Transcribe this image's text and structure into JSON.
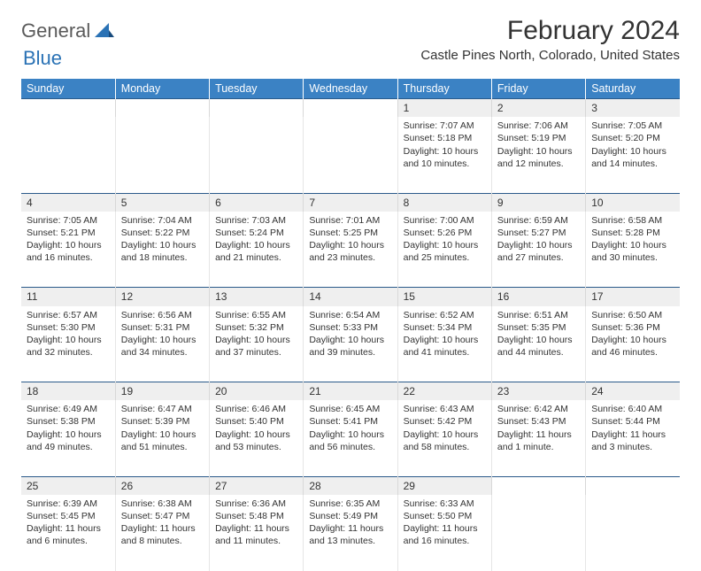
{
  "brand": {
    "part1": "General",
    "part2": "Blue"
  },
  "title": "February 2024",
  "location": "Castle Pines North, Colorado, United States",
  "colors": {
    "header_bg": "#3b82c4",
    "header_text": "#ffffff",
    "daynum_bg": "#efefef",
    "daynum_border_top": "#2a5a8a",
    "logo_accent": "#2a72b5",
    "body_text": "#333333"
  },
  "typography": {
    "month_title_fontsize": 30,
    "location_fontsize": 15,
    "weekday_fontsize": 12.5,
    "cell_fontsize": 10.5
  },
  "weekdays": [
    "Sunday",
    "Monday",
    "Tuesday",
    "Wednesday",
    "Thursday",
    "Friday",
    "Saturday"
  ],
  "weeks": [
    {
      "nums": [
        "",
        "",
        "",
        "",
        "1",
        "2",
        "3"
      ],
      "cells": [
        {
          "sunrise": "",
          "sunset": "",
          "daylight": ""
        },
        {
          "sunrise": "",
          "sunset": "",
          "daylight": ""
        },
        {
          "sunrise": "",
          "sunset": "",
          "daylight": ""
        },
        {
          "sunrise": "",
          "sunset": "",
          "daylight": ""
        },
        {
          "sunrise": "Sunrise: 7:07 AM",
          "sunset": "Sunset: 5:18 PM",
          "daylight": "Daylight: 10 hours and 10 minutes."
        },
        {
          "sunrise": "Sunrise: 7:06 AM",
          "sunset": "Sunset: 5:19 PM",
          "daylight": "Daylight: 10 hours and 12 minutes."
        },
        {
          "sunrise": "Sunrise: 7:05 AM",
          "sunset": "Sunset: 5:20 PM",
          "daylight": "Daylight: 10 hours and 14 minutes."
        }
      ]
    },
    {
      "nums": [
        "4",
        "5",
        "6",
        "7",
        "8",
        "9",
        "10"
      ],
      "cells": [
        {
          "sunrise": "Sunrise: 7:05 AM",
          "sunset": "Sunset: 5:21 PM",
          "daylight": "Daylight: 10 hours and 16 minutes."
        },
        {
          "sunrise": "Sunrise: 7:04 AM",
          "sunset": "Sunset: 5:22 PM",
          "daylight": "Daylight: 10 hours and 18 minutes."
        },
        {
          "sunrise": "Sunrise: 7:03 AM",
          "sunset": "Sunset: 5:24 PM",
          "daylight": "Daylight: 10 hours and 21 minutes."
        },
        {
          "sunrise": "Sunrise: 7:01 AM",
          "sunset": "Sunset: 5:25 PM",
          "daylight": "Daylight: 10 hours and 23 minutes."
        },
        {
          "sunrise": "Sunrise: 7:00 AM",
          "sunset": "Sunset: 5:26 PM",
          "daylight": "Daylight: 10 hours and 25 minutes."
        },
        {
          "sunrise": "Sunrise: 6:59 AM",
          "sunset": "Sunset: 5:27 PM",
          "daylight": "Daylight: 10 hours and 27 minutes."
        },
        {
          "sunrise": "Sunrise: 6:58 AM",
          "sunset": "Sunset: 5:28 PM",
          "daylight": "Daylight: 10 hours and 30 minutes."
        }
      ]
    },
    {
      "nums": [
        "11",
        "12",
        "13",
        "14",
        "15",
        "16",
        "17"
      ],
      "cells": [
        {
          "sunrise": "Sunrise: 6:57 AM",
          "sunset": "Sunset: 5:30 PM",
          "daylight": "Daylight: 10 hours and 32 minutes."
        },
        {
          "sunrise": "Sunrise: 6:56 AM",
          "sunset": "Sunset: 5:31 PM",
          "daylight": "Daylight: 10 hours and 34 minutes."
        },
        {
          "sunrise": "Sunrise: 6:55 AM",
          "sunset": "Sunset: 5:32 PM",
          "daylight": "Daylight: 10 hours and 37 minutes."
        },
        {
          "sunrise": "Sunrise: 6:54 AM",
          "sunset": "Sunset: 5:33 PM",
          "daylight": "Daylight: 10 hours and 39 minutes."
        },
        {
          "sunrise": "Sunrise: 6:52 AM",
          "sunset": "Sunset: 5:34 PM",
          "daylight": "Daylight: 10 hours and 41 minutes."
        },
        {
          "sunrise": "Sunrise: 6:51 AM",
          "sunset": "Sunset: 5:35 PM",
          "daylight": "Daylight: 10 hours and 44 minutes."
        },
        {
          "sunrise": "Sunrise: 6:50 AM",
          "sunset": "Sunset: 5:36 PM",
          "daylight": "Daylight: 10 hours and 46 minutes."
        }
      ]
    },
    {
      "nums": [
        "18",
        "19",
        "20",
        "21",
        "22",
        "23",
        "24"
      ],
      "cells": [
        {
          "sunrise": "Sunrise: 6:49 AM",
          "sunset": "Sunset: 5:38 PM",
          "daylight": "Daylight: 10 hours and 49 minutes."
        },
        {
          "sunrise": "Sunrise: 6:47 AM",
          "sunset": "Sunset: 5:39 PM",
          "daylight": "Daylight: 10 hours and 51 minutes."
        },
        {
          "sunrise": "Sunrise: 6:46 AM",
          "sunset": "Sunset: 5:40 PM",
          "daylight": "Daylight: 10 hours and 53 minutes."
        },
        {
          "sunrise": "Sunrise: 6:45 AM",
          "sunset": "Sunset: 5:41 PM",
          "daylight": "Daylight: 10 hours and 56 minutes."
        },
        {
          "sunrise": "Sunrise: 6:43 AM",
          "sunset": "Sunset: 5:42 PM",
          "daylight": "Daylight: 10 hours and 58 minutes."
        },
        {
          "sunrise": "Sunrise: 6:42 AM",
          "sunset": "Sunset: 5:43 PM",
          "daylight": "Daylight: 11 hours and 1 minute."
        },
        {
          "sunrise": "Sunrise: 6:40 AM",
          "sunset": "Sunset: 5:44 PM",
          "daylight": "Daylight: 11 hours and 3 minutes."
        }
      ]
    },
    {
      "nums": [
        "25",
        "26",
        "27",
        "28",
        "29",
        "",
        ""
      ],
      "cells": [
        {
          "sunrise": "Sunrise: 6:39 AM",
          "sunset": "Sunset: 5:45 PM",
          "daylight": "Daylight: 11 hours and 6 minutes."
        },
        {
          "sunrise": "Sunrise: 6:38 AM",
          "sunset": "Sunset: 5:47 PM",
          "daylight": "Daylight: 11 hours and 8 minutes."
        },
        {
          "sunrise": "Sunrise: 6:36 AM",
          "sunset": "Sunset: 5:48 PM",
          "daylight": "Daylight: 11 hours and 11 minutes."
        },
        {
          "sunrise": "Sunrise: 6:35 AM",
          "sunset": "Sunset: 5:49 PM",
          "daylight": "Daylight: 11 hours and 13 minutes."
        },
        {
          "sunrise": "Sunrise: 6:33 AM",
          "sunset": "Sunset: 5:50 PM",
          "daylight": "Daylight: 11 hours and 16 minutes."
        },
        {
          "sunrise": "",
          "sunset": "",
          "daylight": ""
        },
        {
          "sunrise": "",
          "sunset": "",
          "daylight": ""
        }
      ]
    }
  ]
}
